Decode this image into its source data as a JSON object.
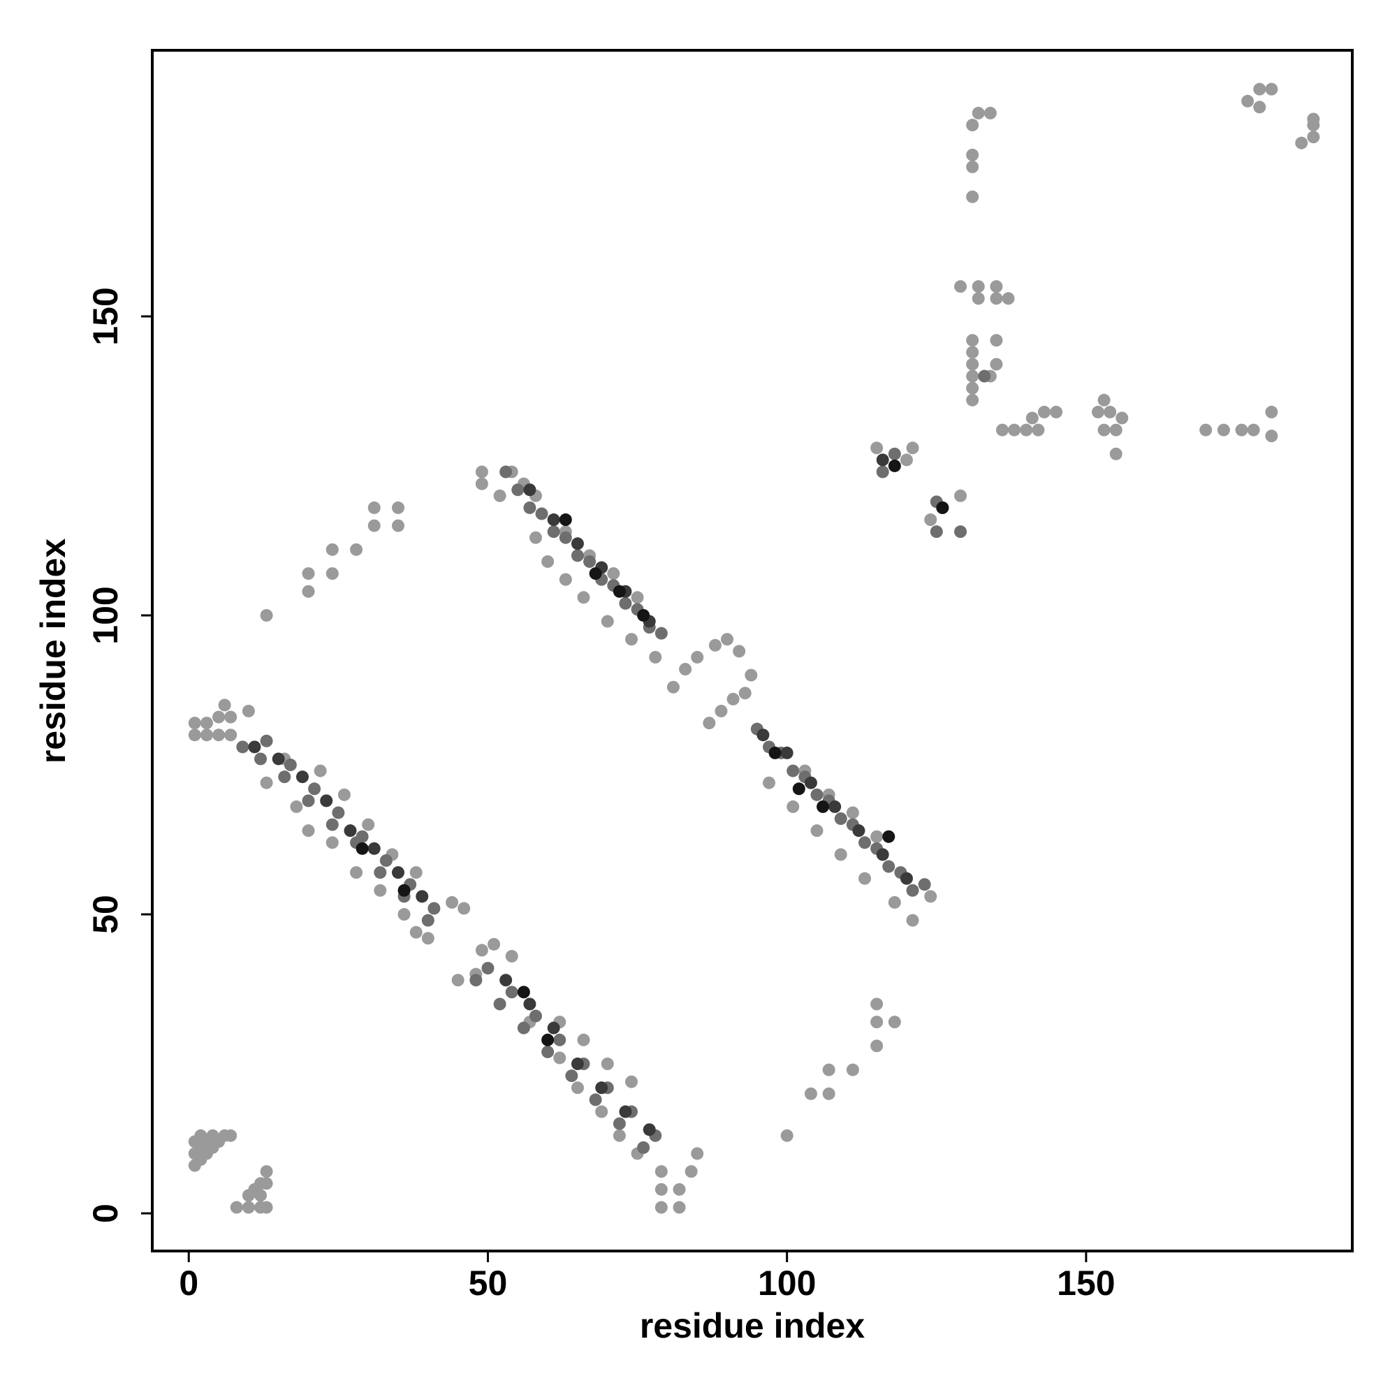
{
  "chart_data": {
    "type": "scatter",
    "x_label": "residue index",
    "y_label": "residue index",
    "xlim": [
      -6.1,
      194.5
    ],
    "ylim": [
      -6.3,
      194.5
    ],
    "xticks": [
      0,
      50,
      100,
      150
    ],
    "yticks": [
      0,
      50,
      100,
      150
    ],
    "series": [
      {
        "color": "#9a9a9a",
        "x": [
          1,
          1,
          1,
          2,
          2,
          3,
          3,
          4,
          5,
          6,
          7,
          2,
          4,
          8,
          10,
          12,
          13,
          10,
          12,
          13,
          13,
          11,
          12,
          1,
          3,
          5,
          7,
          1,
          3,
          5,
          7,
          10,
          6,
          13,
          18,
          20,
          24,
          28,
          32,
          36,
          40,
          44,
          46,
          38,
          16,
          22,
          26,
          30,
          34,
          38,
          45,
          48,
          49,
          51,
          54,
          57,
          62,
          65,
          69,
          72,
          75,
          79,
          79,
          79,
          82,
          82,
          84,
          85,
          74,
          70,
          66,
          62,
          49,
          49,
          52,
          54,
          56,
          58,
          60,
          63,
          66,
          70,
          74,
          78,
          81,
          83,
          85,
          88,
          90,
          92,
          87,
          89,
          91,
          93,
          94,
          97,
          101,
          105,
          109,
          113,
          118,
          121,
          124,
          58,
          63,
          67,
          71,
          75,
          103,
          107,
          111,
          115,
          13,
          20,
          20,
          24,
          24,
          28,
          31,
          35,
          35,
          31,
          100,
          104,
          107,
          107,
          111,
          115,
          115,
          118,
          115,
          115,
          121,
          120,
          129,
          124,
          131,
          131,
          131,
          131,
          131,
          131,
          132,
          132,
          131,
          132,
          131,
          131,
          131,
          135,
          135,
          137,
          134,
          135,
          135,
          134,
          129,
          136,
          138,
          140,
          141,
          143,
          145,
          142,
          152,
          154,
          156,
          153,
          155,
          155,
          153,
          170,
          173,
          176,
          178,
          181,
          181,
          177,
          179,
          179,
          181,
          186,
          188,
          188,
          188
        ],
        "values": [
          8,
          10,
          12,
          9,
          11,
          10,
          12,
          11,
          12,
          13,
          13,
          13,
          13,
          1,
          1,
          1,
          1,
          3,
          3,
          5,
          7,
          4,
          5,
          80,
          80,
          80,
          80,
          82,
          82,
          83,
          83,
          84,
          85,
          72,
          68,
          64,
          62,
          57,
          54,
          50,
          46,
          52,
          51,
          47,
          76,
          74,
          70,
          65,
          60,
          57,
          39,
          40,
          44,
          45,
          43,
          32,
          26,
          21,
          17,
          13,
          10,
          1,
          4,
          7,
          1,
          4,
          7,
          10,
          22,
          25,
          29,
          32,
          122,
          124,
          120,
          124,
          122,
          113,
          109,
          106,
          103,
          99,
          96,
          93,
          88,
          91,
          93,
          95,
          96,
          94,
          82,
          84,
          86,
          87,
          90,
          72,
          68,
          64,
          60,
          56,
          52,
          49,
          53,
          120,
          114,
          110,
          107,
          103,
          74,
          70,
          67,
          63,
          100,
          104,
          107,
          107,
          111,
          111,
          115,
          115,
          118,
          118,
          13,
          20,
          20,
          24,
          24,
          28,
          32,
          32,
          35,
          128,
          128,
          126,
          120,
          116,
          136,
          138,
          140,
          142,
          144,
          146,
          153,
          155,
          182,
          184,
          175,
          177,
          170,
          153,
          155,
          153,
          140,
          142,
          146,
          184,
          155,
          131,
          131,
          131,
          133,
          134,
          134,
          131,
          134,
          134,
          133,
          131,
          131,
          127,
          136,
          131,
          131,
          131,
          131,
          130,
          134,
          186,
          185,
          188,
          188,
          179,
          180,
          182,
          183
        ]
      },
      {
        "color": "#6e6e6e",
        "x": [
          9,
          13,
          17,
          21,
          25,
          29,
          33,
          37,
          41,
          12,
          16,
          20,
          24,
          28,
          32,
          36,
          40,
          48,
          52,
          56,
          60,
          64,
          68,
          72,
          76,
          50,
          54,
          58,
          62,
          66,
          70,
          74,
          78,
          53,
          55,
          59,
          63,
          67,
          71,
          75,
          79,
          57,
          61,
          65,
          69,
          73,
          77,
          95,
          99,
          103,
          107,
          111,
          115,
          119,
          123,
          97,
          101,
          105,
          109,
          113,
          117,
          121,
          116,
          118,
          125,
          129,
          125,
          133
        ],
        "values": [
          78,
          79,
          75,
          71,
          67,
          63,
          59,
          55,
          51,
          76,
          73,
          69,
          65,
          62,
          57,
          53,
          49,
          39,
          35,
          31,
          27,
          23,
          19,
          15,
          11,
          41,
          37,
          33,
          29,
          25,
          21,
          17,
          13,
          124,
          121,
          117,
          113,
          109,
          105,
          101,
          97,
          118,
          114,
          110,
          106,
          102,
          98,
          81,
          77,
          73,
          69,
          65,
          61,
          57,
          55,
          78,
          74,
          70,
          66,
          62,
          58,
          54,
          124,
          127,
          114,
          114,
          119,
          140
        ]
      },
      {
        "color": "#3a3a3a",
        "x": [
          11,
          15,
          19,
          23,
          27,
          31,
          35,
          39,
          53,
          57,
          61,
          65,
          69,
          73,
          77,
          57,
          61,
          65,
          69,
          73,
          77,
          96,
          100,
          104,
          108,
          112,
          116,
          120,
          116,
          126
        ],
        "values": [
          78,
          76,
          73,
          69,
          64,
          61,
          57,
          53,
          39,
          35,
          31,
          25,
          21,
          17,
          14,
          121,
          116,
          112,
          108,
          104,
          99,
          80,
          77,
          72,
          68,
          64,
          60,
          56,
          126,
          118
        ]
      },
      {
        "color": "#151515",
        "x": [
          29,
          36,
          56,
          60,
          63,
          68,
          72,
          76,
          98,
          102,
          106,
          117,
          118,
          126
        ],
        "values": [
          61,
          54,
          37,
          29,
          116,
          107,
          104,
          100,
          77,
          71,
          68,
          63,
          125,
          118
        ]
      }
    ]
  }
}
